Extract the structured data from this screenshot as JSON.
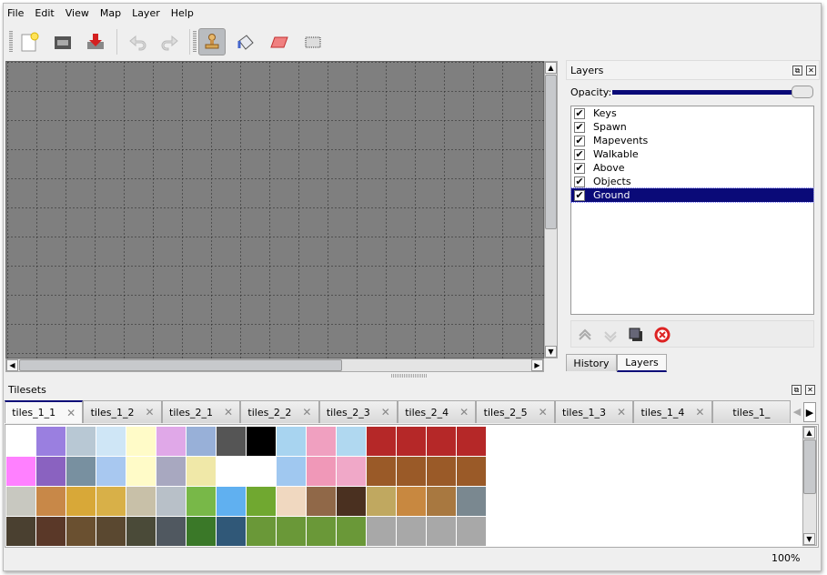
{
  "menu": [
    "File",
    "Edit",
    "View",
    "Map",
    "Layer",
    "Help"
  ],
  "toolbar": {
    "buttons": [
      {
        "name": "new-map",
        "icon": "new-document-icon"
      },
      {
        "name": "open",
        "icon": "folder-open-icon"
      },
      {
        "name": "save",
        "icon": "save-icon"
      },
      {
        "name": "undo",
        "icon": "undo-icon",
        "disabled": true
      },
      {
        "name": "redo",
        "icon": "redo-icon",
        "disabled": true
      },
      {
        "name": "stamp-brush",
        "icon": "stamp-icon",
        "active": true
      },
      {
        "name": "bucket-fill",
        "icon": "bucket-fill-icon"
      },
      {
        "name": "eraser",
        "icon": "eraser-icon"
      },
      {
        "name": "rect-select",
        "icon": "rectangle-select-icon"
      }
    ]
  },
  "layers_panel": {
    "title": "Layers",
    "opacity_label": "Opacity:",
    "opacity_value": 100,
    "layers": [
      {
        "name": "Keys",
        "visible": true
      },
      {
        "name": "Spawn",
        "visible": true
      },
      {
        "name": "Mapevents",
        "visible": true
      },
      {
        "name": "Walkable",
        "visible": true
      },
      {
        "name": "Above",
        "visible": true
      },
      {
        "name": "Objects",
        "visible": true
      },
      {
        "name": "Ground",
        "visible": true,
        "selected": true
      }
    ],
    "buttons": [
      "raise-layer-icon",
      "lower-layer-icon",
      "duplicate-layer-icon",
      "remove-layer-icon"
    ],
    "tabs": [
      {
        "label": "History"
      },
      {
        "label": "Layers",
        "active": true
      }
    ]
  },
  "tilesets_panel": {
    "title": "Tilesets",
    "tabs": [
      "tiles_1_1",
      "tiles_1_2",
      "tiles_2_1",
      "tiles_2_2",
      "tiles_2_3",
      "tiles_2_4",
      "tiles_2_5",
      "tiles_1_3",
      "tiles_1_4",
      "tiles_1_"
    ],
    "active_tab": 0
  },
  "status": {
    "zoom": "100%"
  },
  "colors": {
    "selection": "#0a0a78",
    "map_background": "#7f7f7f"
  }
}
